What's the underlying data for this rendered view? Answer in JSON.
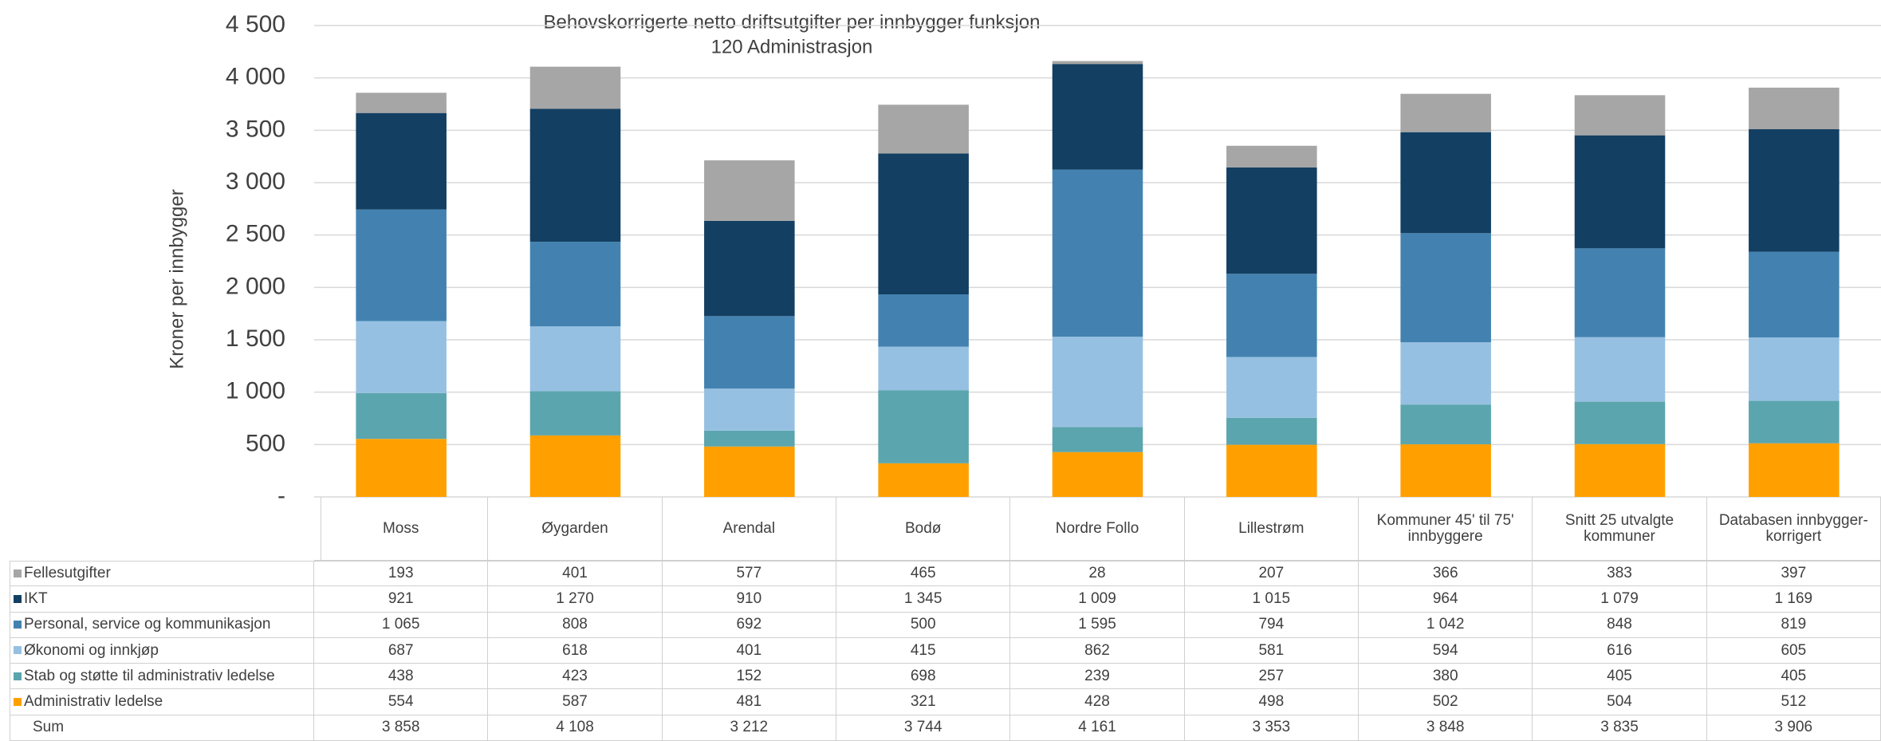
{
  "chart_data": {
    "type": "stacked_bar",
    "title": [
      "Behovskorrigerte netto driftsutgifter per innbygger  funksjon",
      "120 Administrasjon"
    ],
    "y_label": "Kroner per innbygger",
    "categories": [
      "Moss",
      "Øygarden",
      "Arendal",
      "Bodø",
      "Nordre Follo",
      "Lillestrøm",
      "Kommuner 45' til 75' innbyggere",
      "Snitt 25 utvalgte kommuner",
      "Databasen innbygger-korrigert"
    ],
    "ylim": [
      0,
      4500
    ],
    "yticks": [
      {
        "value": 0,
        "label": "-"
      },
      500,
      {
        "value": 1000,
        "label": "1 000"
      },
      {
        "value": 1500,
        "label": "1 500"
      },
      {
        "value": 2000,
        "label": "2 000"
      },
      {
        "value": 2500,
        "label": "2 500"
      },
      {
        "value": 3000,
        "label": "3 000"
      },
      {
        "value": 3500,
        "label": "3 500"
      },
      {
        "value": 4000,
        "label": "4 000"
      },
      {
        "value": 4500,
        "label": "4 500"
      }
    ],
    "grid": true,
    "series": [
      {
        "name": "Fellesutgifter",
        "color": "#a6a6a6",
        "values": [
          193,
          401,
          577,
          465,
          28,
          207,
          366,
          383,
          397
        ]
      },
      {
        "name": "IKT",
        "color": "#133f62",
        "values": [
          921,
          1270,
          910,
          1345,
          1009,
          1015,
          964,
          1079,
          1169
        ],
        "value_labels": [
          "921",
          "1 270",
          "910",
          "1 345",
          "1 009",
          "1 015",
          "964",
          "1 079",
          "1 169"
        ]
      },
      {
        "name": "Personal, service og kommunikasjon",
        "color": "#4382b0",
        "values": [
          1065,
          808,
          692,
          500,
          1595,
          794,
          1042,
          848,
          819
        ],
        "value_labels": [
          "1 065",
          "808",
          "692",
          "500",
          "1 595",
          "794",
          "1 042",
          "848",
          "819"
        ]
      },
      {
        "name": "Økonomi og innkjøp",
        "color": "#96c0e2",
        "values": [
          687,
          618,
          401,
          415,
          862,
          581,
          594,
          616,
          605
        ]
      },
      {
        "name": "Stab og støtte til administrativ ledelse",
        "color": "#5ba5ae",
        "values": [
          438,
          423,
          152,
          698,
          239,
          257,
          380,
          405,
          405
        ]
      },
      {
        "name": "Administrativ ledelse",
        "color": "#ffa000",
        "values": [
          554,
          587,
          481,
          321,
          428,
          498,
          502,
          504,
          512
        ]
      }
    ],
    "sum": {
      "name": "Sum",
      "values": [
        3858,
        4108,
        3212,
        3744,
        4161,
        3353,
        3848,
        3835,
        3906
      ],
      "value_labels": [
        "3 858",
        "4 108",
        "3 212",
        "3 744",
        "4 161",
        "3 353",
        "3 848",
        "3 835",
        "3 906"
      ]
    }
  }
}
